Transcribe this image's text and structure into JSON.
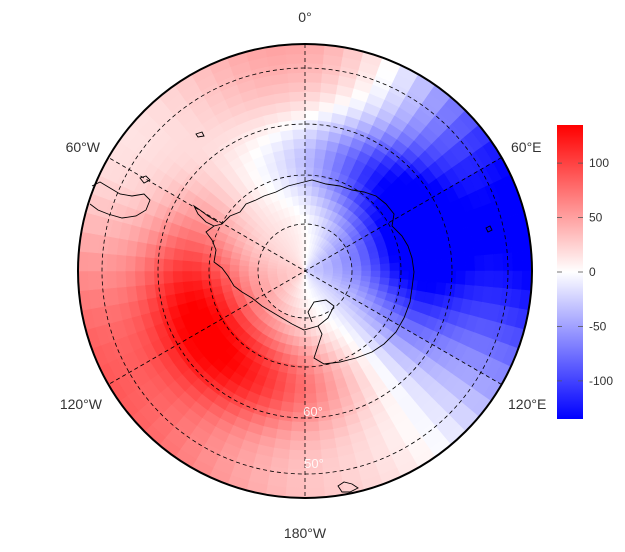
{
  "map": {
    "projection": "south-polar-stereographic",
    "longitude_labels": [
      {
        "key": "0",
        "text": "0°"
      },
      {
        "key": "60E",
        "text": "60°E"
      },
      {
        "key": "120E",
        "text": "120°E"
      },
      {
        "key": "180",
        "text": "180°W"
      },
      {
        "key": "120W",
        "text": "120°W"
      },
      {
        "key": "60W",
        "text": "60°W"
      }
    ],
    "latitude_labels": [
      {
        "key": "60S",
        "text": "60°"
      },
      {
        "key": "50S",
        "text": "50°"
      }
    ],
    "colorbar": {
      "min": -135,
      "max": 135,
      "ticks": [
        100,
        50,
        0,
        -50,
        -100
      ],
      "colormap": [
        "#0000ff",
        "#ffffff",
        "#ff0000"
      ]
    },
    "colors": {
      "positive": "#ff0000",
      "neutral": "#ffffff",
      "negative": "#0000ff",
      "coastline": "#000000",
      "gridline": "#000000"
    }
  }
}
